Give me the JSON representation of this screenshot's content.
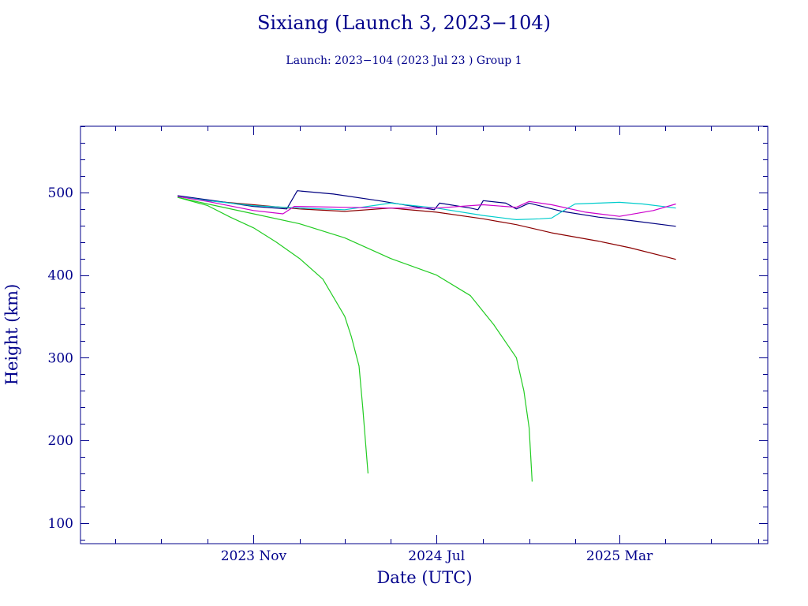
{
  "chart_data": {
    "type": "line",
    "title": "Sixiang (Launch 3, 2023−104)",
    "subtitle": "Launch: 2023−104  (2023 Jul 23 )  Group 1",
    "xlabel": "Date (UTC)",
    "ylabel": "Height (km)",
    "x_unit": "date",
    "xlim": [
      "2023-03-16",
      "2025-09-14"
    ],
    "ylim": [
      75,
      580
    ],
    "x_ticks": [
      {
        "label": "2023 Nov",
        "date": "2023-11-01"
      },
      {
        "label": "2024 Jul",
        "date": "2024-07-01"
      },
      {
        "label": "2025 Mar",
        "date": "2025-03-01"
      }
    ],
    "y_ticks": [
      100,
      200,
      300,
      400,
      500
    ],
    "grid": false,
    "legend": "none",
    "series": [
      {
        "color": "#8b0000",
        "points": [
          [
            "2023-07-23",
            495
          ],
          [
            "2023-09-01",
            490
          ],
          [
            "2023-11-01",
            485
          ],
          [
            "2024-01-01",
            480
          ],
          [
            "2024-03-01",
            477
          ],
          [
            "2024-05-01",
            481
          ],
          [
            "2024-07-01",
            476
          ],
          [
            "2024-09-01",
            468
          ],
          [
            "2024-10-15",
            461
          ],
          [
            "2024-12-01",
            451
          ],
          [
            "2025-02-01",
            441
          ],
          [
            "2025-03-15",
            433
          ],
          [
            "2025-05-15",
            419
          ]
        ]
      },
      {
        "color": "#000080",
        "points": [
          [
            "2023-07-23",
            496
          ],
          [
            "2023-09-01",
            491
          ],
          [
            "2023-11-01",
            483
          ],
          [
            "2023-12-15",
            480
          ],
          [
            "2023-12-29",
            502
          ],
          [
            "2024-02-15",
            498
          ],
          [
            "2024-04-15",
            490
          ],
          [
            "2024-06-01",
            483
          ],
          [
            "2024-06-28",
            479
          ],
          [
            "2024-07-05",
            487
          ],
          [
            "2024-08-15",
            481
          ],
          [
            "2024-08-25",
            479
          ],
          [
            "2024-09-01",
            490
          ],
          [
            "2024-10-01",
            487
          ],
          [
            "2024-10-15",
            480
          ],
          [
            "2024-11-01",
            487
          ],
          [
            "2024-12-15",
            477
          ],
          [
            "2025-02-01",
            470
          ],
          [
            "2025-03-15",
            466
          ],
          [
            "2025-05-15",
            459
          ]
        ]
      },
      {
        "color": "#00cccc",
        "points": [
          [
            "2023-07-23",
            495
          ],
          [
            "2023-09-01",
            490
          ],
          [
            "2023-11-01",
            484
          ],
          [
            "2024-01-01",
            481
          ],
          [
            "2024-03-01",
            479
          ],
          [
            "2024-05-01",
            487
          ],
          [
            "2024-07-01",
            481
          ],
          [
            "2024-09-01",
            472
          ],
          [
            "2024-10-15",
            467
          ],
          [
            "2024-11-15",
            468
          ],
          [
            "2024-12-01",
            469
          ],
          [
            "2024-12-15",
            477
          ],
          [
            "2025-01-01",
            486
          ],
          [
            "2025-02-01",
            487
          ],
          [
            "2025-03-01",
            488
          ],
          [
            "2025-04-01",
            486
          ],
          [
            "2025-05-15",
            481
          ]
        ]
      },
      {
        "color": "#cc00cc",
        "points": [
          [
            "2023-07-23",
            495
          ],
          [
            "2023-09-01",
            489
          ],
          [
            "2023-11-01",
            478
          ],
          [
            "2023-12-10",
            474
          ],
          [
            "2023-12-25",
            483
          ],
          [
            "2024-03-01",
            482
          ],
          [
            "2024-05-01",
            481
          ],
          [
            "2024-07-01",
            481
          ],
          [
            "2024-09-01",
            485
          ],
          [
            "2024-10-15",
            482
          ],
          [
            "2024-11-01",
            489
          ],
          [
            "2024-12-01",
            485
          ],
          [
            "2025-01-15",
            476
          ],
          [
            "2025-03-01",
            471
          ],
          [
            "2025-04-15",
            478
          ],
          [
            "2025-05-15",
            486
          ]
        ]
      },
      {
        "color": "#22cc22",
        "points": [
          [
            "2023-07-23",
            494
          ],
          [
            "2023-09-01",
            484
          ],
          [
            "2023-10-01",
            470
          ],
          [
            "2023-11-01",
            457
          ],
          [
            "2023-12-01",
            440
          ],
          [
            "2024-01-01",
            420
          ],
          [
            "2024-02-01",
            395
          ],
          [
            "2024-03-01",
            350
          ],
          [
            "2024-03-10",
            325
          ],
          [
            "2024-03-20",
            290
          ],
          [
            "2024-03-25",
            240
          ],
          [
            "2024-04-01",
            160
          ]
        ]
      },
      {
        "color": "#22cc22",
        "points": [
          [
            "2023-07-23",
            494
          ],
          [
            "2023-09-01",
            486
          ],
          [
            "2023-11-01",
            474
          ],
          [
            "2024-01-01",
            462
          ],
          [
            "2024-03-01",
            445
          ],
          [
            "2024-05-01",
            420
          ],
          [
            "2024-07-01",
            400
          ],
          [
            "2024-08-15",
            375
          ],
          [
            "2024-09-15",
            340
          ],
          [
            "2024-10-15",
            300
          ],
          [
            "2024-10-25",
            260
          ],
          [
            "2024-11-01",
            215
          ],
          [
            "2024-11-05",
            150
          ]
        ]
      }
    ]
  }
}
